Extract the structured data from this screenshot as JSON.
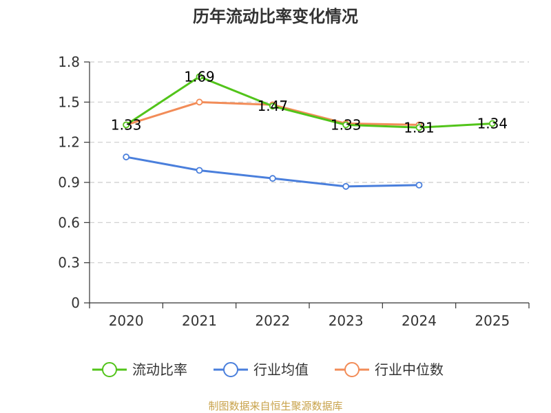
{
  "chart_data": {
    "type": "line",
    "title": "历年流动比率变化情况",
    "categories": [
      "2020",
      "2021",
      "2022",
      "2023",
      "2024",
      "2025"
    ],
    "ylim": [
      0,
      1.8
    ],
    "yticks": [
      "0",
      "0.3",
      "0.6",
      "0.9",
      "1.2",
      "1.5",
      "1.8"
    ],
    "ytick_values": [
      0,
      0.3,
      0.6,
      0.9,
      1.2,
      1.5,
      1.8
    ],
    "grid": true,
    "legend_position": "bottom",
    "series": [
      {
        "name": "流动比率",
        "color": "#52c41a",
        "values": [
          1.33,
          1.69,
          1.47,
          1.33,
          1.31,
          1.34
        ],
        "labels": [
          "1.33",
          "1.69",
          "1.47",
          "1.33",
          "1.31",
          "1.34"
        ]
      },
      {
        "name": "行业均值",
        "color": "#4a7fdc",
        "values": [
          1.09,
          0.99,
          0.93,
          0.87,
          0.88,
          null
        ]
      },
      {
        "name": "行业中位数",
        "color": "#f28c58",
        "values": [
          1.33,
          1.5,
          1.48,
          1.34,
          1.33,
          null
        ]
      }
    ],
    "source": "制图数据来自恒生聚源数据库"
  }
}
